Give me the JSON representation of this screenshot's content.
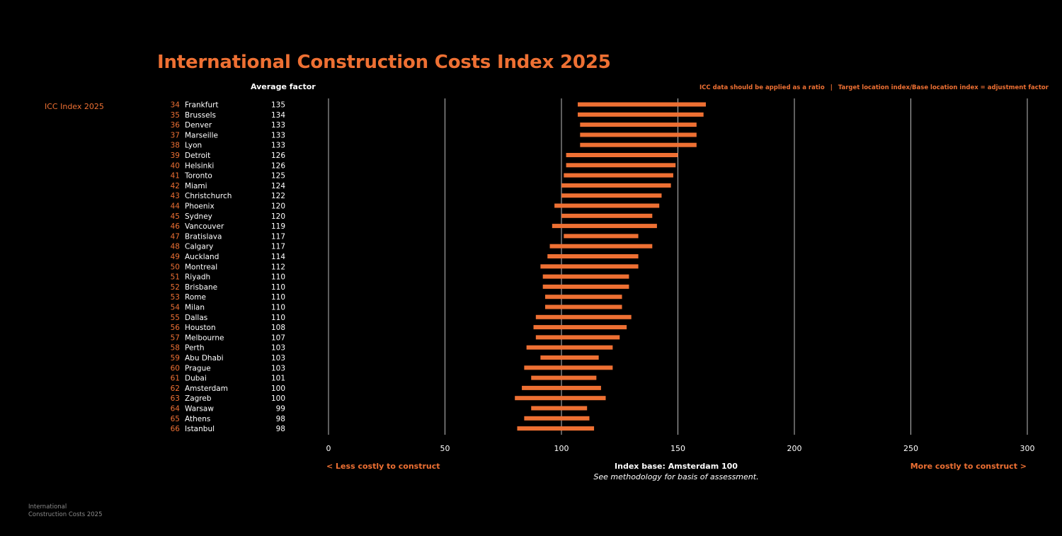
{
  "page": {
    "title": "International Construction Costs Index 2025",
    "avg_header": "Average factor",
    "note_left": "ICC data should be applied as a ratio",
    "note_sep": "|",
    "note_right": "Target location index/Base location index = adjustment factor",
    "icc_label": "ICC Index 2025",
    "footer_line1": "International",
    "footer_line2": "Construction Costs 2025"
  },
  "chart_data": {
    "type": "bar",
    "title": "International Construction Costs Index 2025",
    "xlim": [
      0,
      300
    ],
    "xticks": [
      0,
      50,
      100,
      150,
      200,
      250,
      300
    ],
    "less_label": "< Less costly to construct",
    "more_label": "More costly to construct >",
    "base_label": "Index base: Amsterdam 100",
    "methodology": "See methodology for basis of assessment.",
    "rows": [
      {
        "rank": "34",
        "city": "Frankfurt",
        "avg": 135,
        "min": 107,
        "max": 162
      },
      {
        "rank": "35",
        "city": "Brussels",
        "avg": 134,
        "min": 107,
        "max": 161
      },
      {
        "rank": "36",
        "city": "Denver",
        "avg": 133,
        "min": 108,
        "max": 158
      },
      {
        "rank": "37",
        "city": "Marseille",
        "avg": 133,
        "min": 108,
        "max": 158
      },
      {
        "rank": "38",
        "city": "Lyon",
        "avg": 133,
        "min": 108,
        "max": 158
      },
      {
        "rank": "39",
        "city": "Detroit",
        "avg": 126,
        "min": 102,
        "max": 150
      },
      {
        "rank": "40",
        "city": "Helsinki",
        "avg": 126,
        "min": 102,
        "max": 149
      },
      {
        "rank": "41",
        "city": "Toronto",
        "avg": 125,
        "min": 101,
        "max": 148
      },
      {
        "rank": "42",
        "city": "Miami",
        "avg": 124,
        "min": 100,
        "max": 147
      },
      {
        "rank": "43",
        "city": "Christchurch",
        "avg": 122,
        "min": 100,
        "max": 143
      },
      {
        "rank": "44",
        "city": "Phoenix",
        "avg": 120,
        "min": 97,
        "max": 142
      },
      {
        "rank": "45",
        "city": "Sydney",
        "avg": 120,
        "min": 100,
        "max": 139
      },
      {
        "rank": "46",
        "city": "Vancouver",
        "avg": 119,
        "min": 96,
        "max": 141
      },
      {
        "rank": "47",
        "city": "Bratislava",
        "avg": 117,
        "min": 101,
        "max": 133
      },
      {
        "rank": "48",
        "city": "Calgary",
        "avg": 117,
        "min": 95,
        "max": 139
      },
      {
        "rank": "49",
        "city": "Auckland",
        "avg": 114,
        "min": 94,
        "max": 133
      },
      {
        "rank": "50",
        "city": "Montreal",
        "avg": 112,
        "min": 91,
        "max": 133
      },
      {
        "rank": "51",
        "city": "Riyadh",
        "avg": 110,
        "min": 92,
        "max": 129
      },
      {
        "rank": "52",
        "city": "Brisbane",
        "avg": 110,
        "min": 92,
        "max": 129
      },
      {
        "rank": "53",
        "city": "Rome",
        "avg": 110,
        "min": 93,
        "max": 126
      },
      {
        "rank": "54",
        "city": "Milan",
        "avg": 110,
        "min": 93,
        "max": 126
      },
      {
        "rank": "55",
        "city": "Dallas",
        "avg": 110,
        "min": 89,
        "max": 130
      },
      {
        "rank": "56",
        "city": "Houston",
        "avg": 108,
        "min": 88,
        "max": 128
      },
      {
        "rank": "57",
        "city": "Melbourne",
        "avg": 107,
        "min": 89,
        "max": 125
      },
      {
        "rank": "58",
        "city": "Perth",
        "avg": 103,
        "min": 85,
        "max": 122
      },
      {
        "rank": "59",
        "city": "Abu Dhabi",
        "avg": 103,
        "min": 91,
        "max": 116
      },
      {
        "rank": "60",
        "city": "Prague",
        "avg": 103,
        "min": 84,
        "max": 122
      },
      {
        "rank": "61",
        "city": "Dubai",
        "avg": 101,
        "min": 87,
        "max": 115
      },
      {
        "rank": "62",
        "city": "Amsterdam",
        "avg": 100,
        "min": 83,
        "max": 117
      },
      {
        "rank": "63",
        "city": "Zagreb",
        "avg": 100,
        "min": 80,
        "max": 119
      },
      {
        "rank": "64",
        "city": "Warsaw",
        "avg": 99,
        "min": 87,
        "max": 111
      },
      {
        "rank": "65",
        "city": "Athens",
        "avg": 98,
        "min": 84,
        "max": 112
      },
      {
        "rank": "66",
        "city": "Istanbul",
        "avg": 98,
        "min": 81,
        "max": 114
      }
    ]
  }
}
